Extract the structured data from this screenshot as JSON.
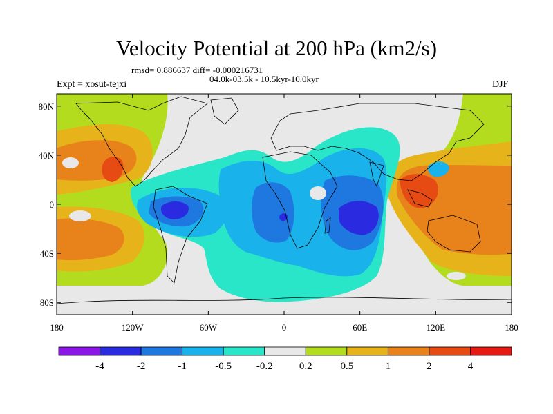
{
  "title": "Velocity Potential at 200 hPa (km2/s)",
  "stats": "rmsd= 0.886637 diff= -0.000216731",
  "period": "04.0k-03.5k - 10.5kyr-10.0kyr",
  "experiment": "Expt = xosut-tejxi",
  "season": "DJF",
  "map": {
    "projection": "cylindrical-equidistant",
    "lon_range": [
      -180,
      180
    ],
    "lat_range": [
      -90,
      90
    ],
    "y_ticks": [
      {
        "label": "80N",
        "lat": 80
      },
      {
        "label": "40N",
        "lat": 40
      },
      {
        "label": "0",
        "lat": 0
      },
      {
        "label": "40S",
        "lat": -40
      },
      {
        "label": "80S",
        "lat": -80
      }
    ],
    "x_ticks": [
      {
        "label": "180",
        "lon": -180
      },
      {
        "label": "120W",
        "lon": -120
      },
      {
        "label": "60W",
        "lon": -60
      },
      {
        "label": "0",
        "lon": 0
      },
      {
        "label": "60E",
        "lon": 60
      },
      {
        "label": "120E",
        "lon": 120
      },
      {
        "label": "180",
        "lon": 180
      }
    ]
  },
  "colorbar": {
    "labels": [
      "-4",
      "-2",
      "-1",
      "-0.5",
      "-0.2",
      "0.2",
      "0.5",
      "1",
      "2",
      "4"
    ],
    "colors": [
      "#8a17e6",
      "#2a2ae0",
      "#1f78e0",
      "#19b2ea",
      "#2ae6c8",
      "#e8e8e8",
      "#b4dc1e",
      "#e6b41a",
      "#e8821a",
      "#e64b14",
      "#e61a14"
    ]
  }
}
